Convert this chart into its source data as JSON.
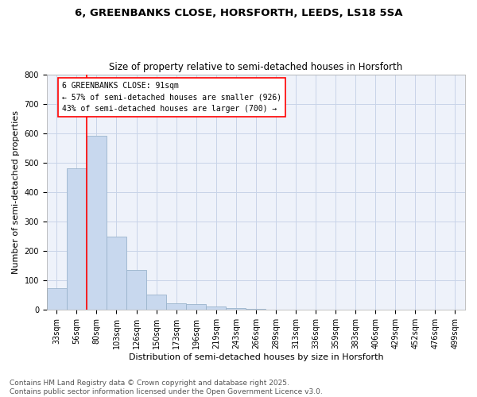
{
  "title_line1": "6, GREENBANKS CLOSE, HORSFORTH, LEEDS, LS18 5SA",
  "title_line2": "Size of property relative to semi-detached houses in Horsforth",
  "xlabel": "Distribution of semi-detached houses by size in Horsforth",
  "ylabel": "Number of semi-detached properties",
  "categories": [
    "33sqm",
    "56sqm",
    "80sqm",
    "103sqm",
    "126sqm",
    "150sqm",
    "173sqm",
    "196sqm",
    "219sqm",
    "243sqm",
    "266sqm",
    "289sqm",
    "313sqm",
    "336sqm",
    "359sqm",
    "383sqm",
    "406sqm",
    "429sqm",
    "452sqm",
    "476sqm",
    "499sqm"
  ],
  "values": [
    75,
    480,
    590,
    248,
    135,
    52,
    22,
    20,
    12,
    5,
    3,
    0,
    0,
    0,
    0,
    0,
    0,
    0,
    0,
    0,
    0
  ],
  "bar_color": "#c8d8ee",
  "bar_edge_color": "#9ab4cc",
  "grid_color": "#c8d4e8",
  "background_color": "#eef2fa",
  "vline_color": "red",
  "vline_pos": 2,
  "annotation_title": "6 GREENBANKS CLOSE: 91sqm",
  "annotation_line1": "← 57% of semi-detached houses are smaller (926)",
  "annotation_line2": "43% of semi-detached houses are larger (700) →",
  "annotation_box_color": "white",
  "annotation_box_edge_color": "red",
  "footer_line1": "Contains HM Land Registry data © Crown copyright and database right 2025.",
  "footer_line2": "Contains public sector information licensed under the Open Government Licence v3.0.",
  "ylim": [
    0,
    800
  ],
  "yticks": [
    0,
    100,
    200,
    300,
    400,
    500,
    600,
    700,
    800
  ],
  "title_fontsize": 9.5,
  "subtitle_fontsize": 8.5,
  "axis_label_fontsize": 8,
  "tick_fontsize": 7,
  "annotation_fontsize": 7,
  "footer_fontsize": 6.5
}
